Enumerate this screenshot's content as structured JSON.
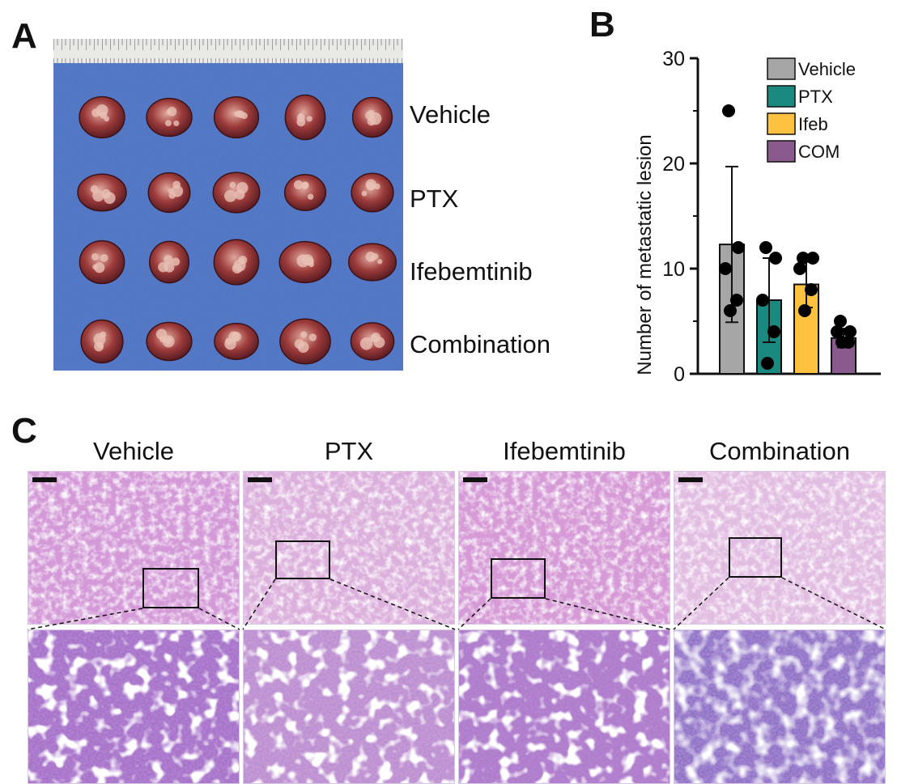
{
  "panels": {
    "a": {
      "letter": "A",
      "row_labels": [
        "Vehicle",
        "PTX",
        "Ifebemtinib",
        "Combination"
      ]
    },
    "b": {
      "letter": "B"
    },
    "c": {
      "letter": "C",
      "titles": [
        "Vehicle",
        "PTX",
        "Ifebemtinib",
        "Combination"
      ]
    }
  },
  "chart_data": {
    "type": "bar",
    "categories": [
      "Vehicle",
      "PTX",
      "Ifeb",
      "COM"
    ],
    "values": [
      12.3,
      7.0,
      8.5,
      3.4
    ],
    "error": [
      7.4,
      4.0,
      2.2,
      0.9
    ],
    "points": [
      [
        25,
        12,
        10,
        7,
        6
      ],
      [
        12,
        11,
        7,
        4,
        1
      ],
      [
        11,
        11,
        10,
        8,
        6
      ],
      [
        5,
        4,
        4,
        3,
        3
      ]
    ],
    "colors": [
      "#a6a6a6",
      "#1a8a80",
      "#ffc240",
      "#8a5a8e"
    ],
    "ylabel": "Number of metastatic lesion",
    "yticks": [
      "0",
      "10",
      "20",
      "30"
    ],
    "ylim": [
      0,
      30
    ],
    "legend": [
      "Vehicle",
      "PTX",
      "Ifeb",
      "COM"
    ],
    "legend_position": "top-right"
  }
}
